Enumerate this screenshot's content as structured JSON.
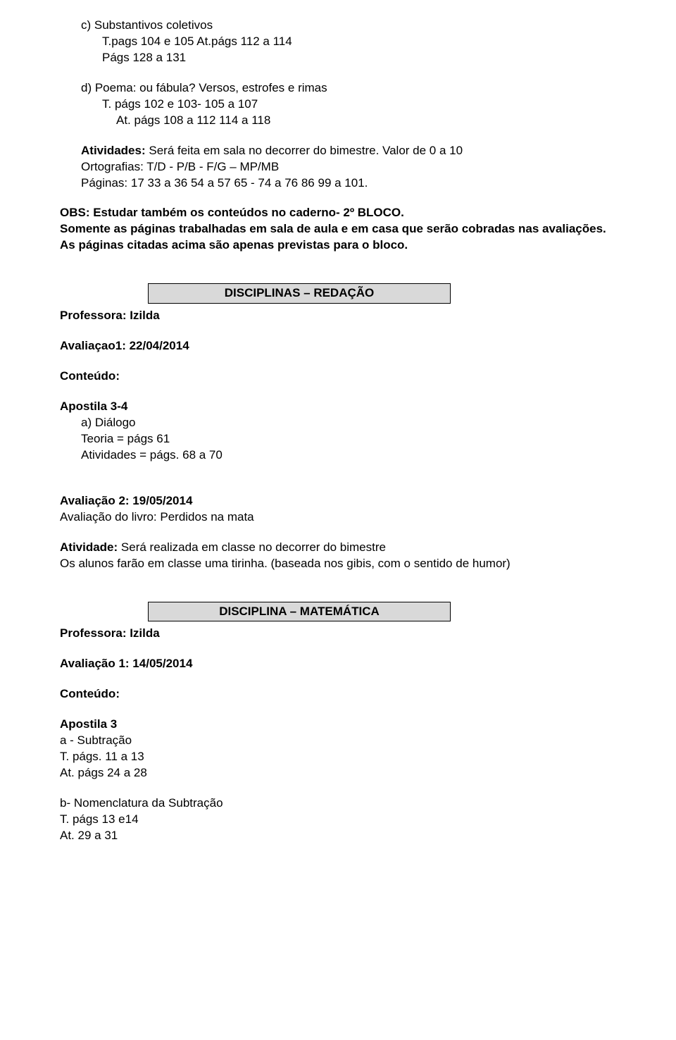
{
  "section_c": {
    "title": "c)  Substantivos coletivos",
    "line1": "T.pags 104 e 105 At.págs 112 a 114",
    "line2": "Págs 128 a 131"
  },
  "section_d": {
    "title": "d)  Poema: ou fábula? Versos, estrofes e rimas",
    "line1": "T. págs 102 e 103- 105 a 107",
    "line2": "At. págs 108 a 112   114 a 118"
  },
  "atividades": {
    "line1_pre": "Atividades: ",
    "line1": "Será feita em sala no decorrer do bimestre.  Valor de 0 a 10",
    "line2": "Ortografias: T/D  - P/B  - F/G – MP/MB",
    "line3": "Páginas: 17   33 a 36   54 a 57   65  - 74 a 76   86   99 a 101."
  },
  "obs": {
    "line1": "OBS: Estudar também os conteúdos no caderno- 2º BLOCO.",
    "line2": "Somente as páginas trabalhadas em sala de aula e em casa que serão cobradas nas avaliações. As páginas citadas acima são apenas previstas para o bloco."
  },
  "redacao": {
    "header": "DISCIPLINAS – REDAÇÃO",
    "professora": "Professora: Izilda",
    "avaliacao1": "Avaliaçao1: 22/04/2014",
    "conteudo": "Conteúdo:",
    "apostila_title": "Apostila 3-4",
    "item_a": "a)  Diálogo",
    "teoria": "Teoria = págs 61",
    "atividades": "Atividades = págs. 68 a 70",
    "avaliacao2": "Avaliação 2:  19/05/2014",
    "avaliacao2_desc": "Avaliação do livro: Perdidos na mata",
    "atividade_pre": "Atividade: ",
    "atividade_line1": "Será realizada em classe no decorrer do bimestre",
    "atividade_line2": "Os alunos farão em classe uma tirinha. (baseada nos gibis, com o sentido de humor)"
  },
  "matematica": {
    "header": "DISCIPLINA – MATEMÁTICA",
    "professora": "Professora: Izilda",
    "avaliacao1": "Avaliação 1: 14/05/2014",
    "conteudo": "Conteúdo:",
    "apostila_title": "Apostila 3",
    "item_a_title": "a - Subtração",
    "item_a_line1": "T. págs. 11 a 13",
    "item_a_line2": "At. págs 24 a 28",
    "item_b_title": "b- Nomenclatura  da Subtração",
    "item_b_line1": "T. págs 13 e14",
    "item_b_line2": "At. 29 a 31"
  }
}
